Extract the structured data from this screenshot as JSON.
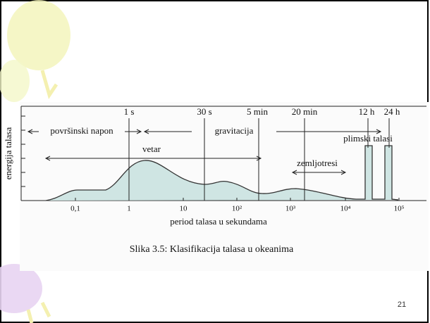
{
  "figure": {
    "y_label": "energija talasa",
    "top_labels": [
      "1 s",
      "30 s",
      "5 min",
      "20 min",
      "12 h",
      "24 h"
    ],
    "bottom_labels": [
      "0,1",
      "1",
      "10",
      "10²",
      "10³",
      "10⁴",
      "10⁵"
    ],
    "x_label": "period talasa u sekundama",
    "regions": [
      "površinski napon",
      "gravitacija",
      "vetar",
      "zemljotresi",
      "plimski talasi"
    ],
    "caption": "Slika 3.5: Klasifikacija talasa u okeanima"
  },
  "page_number": "21"
}
